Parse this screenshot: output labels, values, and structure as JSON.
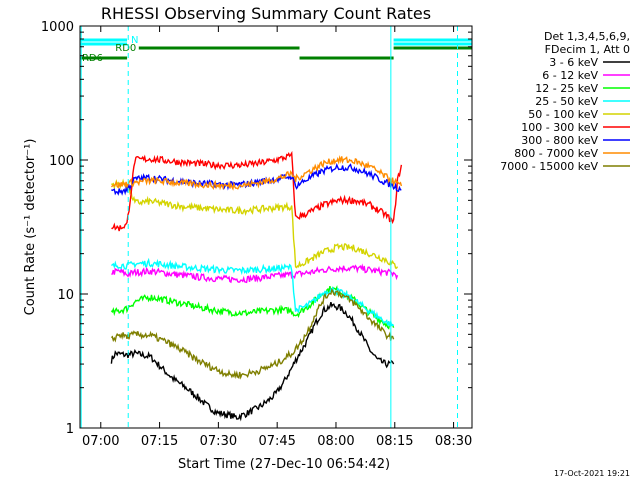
{
  "chart_data": {
    "type": "line",
    "title": "RHESSI Observing Summary Count Rates",
    "xlabel": "Start Time (27-Dec-10 06:54:42)",
    "ylabel": "Count Rate (s⁻¹ detector⁻¹)",
    "x_unit": "minutes after 06:54:42",
    "xlim": [
      0,
      100
    ],
    "ylim": [
      1,
      1000
    ],
    "y_scale": "log",
    "x_ticks": [
      {
        "label": "07:00",
        "x": 5.3
      },
      {
        "label": "07:15",
        "x": 20.3
      },
      {
        "label": "07:30",
        "x": 35.3
      },
      {
        "label": "07:45",
        "x": 50.3
      },
      {
        "label": "08:00",
        "x": 65.3
      },
      {
        "label": "08:15",
        "x": 80.3
      },
      {
        "label": "08:30",
        "x": 95.3
      }
    ],
    "y_ticks": [
      {
        "label": "1",
        "y": 1
      },
      {
        "label": "10",
        "y": 10
      },
      {
        "label": "100",
        "y": 100
      },
      {
        "label": "1000",
        "y": 1000
      }
    ],
    "legend_header": [
      "Det 1,3,4,5,6,9,",
      "FDecim 1, Att 0"
    ],
    "legend_position": "right",
    "series": [
      {
        "name": "3 - 6 keV",
        "color": "#000000",
        "x": [
          8,
          9,
          12,
          14,
          18,
          22,
          24,
          27,
          30,
          32,
          35,
          38,
          40,
          43,
          46,
          48,
          50,
          52,
          54,
          55,
          56,
          58,
          60,
          62,
          64,
          66,
          68,
          70,
          72,
          74,
          76,
          78,
          80
        ],
        "y": [
          3.2,
          3.6,
          3.5,
          3.6,
          3.4,
          2.6,
          2.3,
          2.0,
          1.7,
          1.5,
          1.3,
          1.25,
          1.2,
          1.3,
          1.45,
          1.6,
          1.8,
          2.2,
          2.8,
          3.2,
          3.6,
          4.5,
          6.0,
          7.5,
          8.2,
          8.0,
          7.2,
          6.0,
          4.8,
          3.8,
          3.2,
          3.0,
          3.0
        ]
      },
      {
        "name": "6 - 12 keV",
        "color": "#ff00ff",
        "x": [
          8,
          10,
          12,
          14,
          18,
          22,
          26,
          30,
          34,
          38,
          42,
          46,
          50,
          54,
          55,
          58,
          62,
          66,
          70,
          74,
          78,
          80,
          81
        ],
        "y": [
          14.5,
          14.8,
          14.0,
          14.5,
          14.8,
          14.3,
          13.8,
          13.4,
          13.1,
          12.9,
          12.9,
          13.2,
          13.6,
          14.0,
          14.0,
          14.4,
          15.1,
          15.6,
          15.6,
          15.1,
          14.5,
          14.2,
          13.8
        ]
      },
      {
        "name": "12 - 25 keV",
        "color": "#00ff00",
        "x": [
          8,
          10,
          12,
          14,
          18,
          22,
          26,
          30,
          34,
          38,
          42,
          46,
          50,
          54,
          55,
          58,
          62,
          64,
          66,
          70,
          74,
          78,
          80
        ],
        "y": [
          7.2,
          7.5,
          7.8,
          8.8,
          9.5,
          9.0,
          8.5,
          8.0,
          7.6,
          7.3,
          7.2,
          7.4,
          7.6,
          7.5,
          7.0,
          8.0,
          10.2,
          11.0,
          10.5,
          9.0,
          7.2,
          6.0,
          5.6
        ]
      },
      {
        "name": "25 - 50 keV",
        "color": "#00ffff",
        "x": [
          8,
          10,
          12,
          14,
          18,
          22,
          26,
          30,
          34,
          38,
          42,
          46,
          50,
          54,
          55,
          58,
          60,
          62,
          64,
          66,
          70,
          74,
          78,
          80
        ],
        "y": [
          16.0,
          16.5,
          16.2,
          16.8,
          17.0,
          16.5,
          16.0,
          15.6,
          15.3,
          15.0,
          15.0,
          15.3,
          15.5,
          15.8,
          7.5,
          8.2,
          9.0,
          10.2,
          10.8,
          10.4,
          9.0,
          7.4,
          6.2,
          5.8
        ]
      },
      {
        "name": "50 - 100 keV",
        "color": "#d4d400",
        "x": [
          8,
          12,
          14,
          18,
          22,
          26,
          30,
          34,
          38,
          42,
          46,
          50,
          54,
          55,
          58,
          62,
          66,
          70,
          74,
          78,
          80,
          81
        ],
        "y": [
          66,
          66,
          48,
          49,
          47,
          45,
          44,
          43,
          42,
          42,
          43,
          44,
          45,
          16,
          17.5,
          20.5,
          22.5,
          22.0,
          20.0,
          18.0,
          16.5,
          16.0
        ]
      },
      {
        "name": "100 - 300 keV",
        "color": "#ff0000",
        "x": [
          8,
          10,
          12,
          14,
          18,
          22,
          26,
          30,
          34,
          38,
          42,
          46,
          50,
          54,
          55,
          58,
          62,
          66,
          70,
          74,
          78,
          80,
          81,
          82
        ],
        "y": [
          32,
          31,
          33,
          100,
          102,
          99,
          96,
          94,
          92,
          91,
          92,
          95,
          100,
          108,
          37,
          40,
          46,
          50,
          50,
          46,
          39,
          34,
          70,
          92
        ]
      },
      {
        "name": "300 - 800 keV",
        "color": "#0000ff",
        "x": [
          8,
          10,
          12,
          14,
          18,
          22,
          26,
          30,
          34,
          38,
          42,
          46,
          50,
          54,
          55,
          58,
          62,
          66,
          70,
          74,
          78,
          82
        ],
        "y": [
          59,
          58,
          60,
          72,
          74,
          71,
          69,
          67,
          66,
          65,
          66,
          69,
          72,
          76,
          64,
          72,
          83,
          89,
          87,
          78,
          68,
          60
        ]
      },
      {
        "name": "800 - 7000 keV",
        "color": "#ff8c00",
        "x": [
          8,
          10,
          12,
          14,
          18,
          22,
          26,
          30,
          34,
          38,
          42,
          46,
          50,
          54,
          55,
          58,
          62,
          66,
          70,
          74,
          78,
          82
        ],
        "y": [
          66,
          65,
          67,
          68,
          70,
          69,
          67,
          66,
          65,
          64,
          65,
          68,
          72,
          79,
          72,
          81,
          94,
          101,
          98,
          89,
          75,
          64
        ]
      },
      {
        "name": "7000 - 15000 keV",
        "color": "#7f7f00",
        "x": [
          8,
          10,
          12,
          14,
          18,
          22,
          26,
          30,
          34,
          38,
          42,
          46,
          50,
          54,
          56,
          58,
          60,
          62,
          64,
          66,
          70,
          74,
          78,
          80
        ],
        "y": [
          4.5,
          5.0,
          4.8,
          5.0,
          4.9,
          4.4,
          3.8,
          3.2,
          2.8,
          2.5,
          2.5,
          2.7,
          3.0,
          3.6,
          4.2,
          5.2,
          7.0,
          9.0,
          10.5,
          10.2,
          8.5,
          6.5,
          5.0,
          4.6
        ]
      }
    ],
    "vertical_lines": [
      {
        "x": 0.3,
        "style": "solid",
        "color": "#00ffff"
      },
      {
        "x": 12.3,
        "style": "dashed",
        "color": "#00ffff"
      },
      {
        "x": 79.3,
        "style": "solid",
        "color": "#00ffff"
      },
      {
        "x": 96.3,
        "style": "dashed",
        "color": "#00ffff"
      }
    ],
    "state_bars": [
      {
        "name": "saa",
        "color": "#00ffff",
        "level": "top",
        "segments": [
          [
            0,
            12
          ],
          [
            80,
            100
          ]
        ]
      },
      {
        "name": "night",
        "color": "#00ffff",
        "level": "mid",
        "segments": [
          [
            0,
            12
          ],
          [
            80,
            100
          ]
        ]
      },
      {
        "name": "attenuator",
        "color": "#008000",
        "level": "upper",
        "segments": [
          [
            15,
            56
          ],
          [
            80,
            100
          ]
        ]
      },
      {
        "name": "decimation",
        "color": "#008000",
        "level": "lower",
        "segments": [
          [
            0,
            12
          ],
          [
            3,
            12
          ],
          [
            56,
            80
          ]
        ]
      }
    ],
    "annotations": [
      {
        "label": "RD0",
        "x": 9,
        "level": "upper",
        "color": "#008000"
      },
      {
        "label": "RD6",
        "x": 0.5,
        "level": "lower",
        "color": "#008000"
      },
      {
        "label": "N",
        "x": 13,
        "level": "top",
        "color": "#00ffff"
      }
    ],
    "footer": "17-Oct-2021 19:21"
  }
}
